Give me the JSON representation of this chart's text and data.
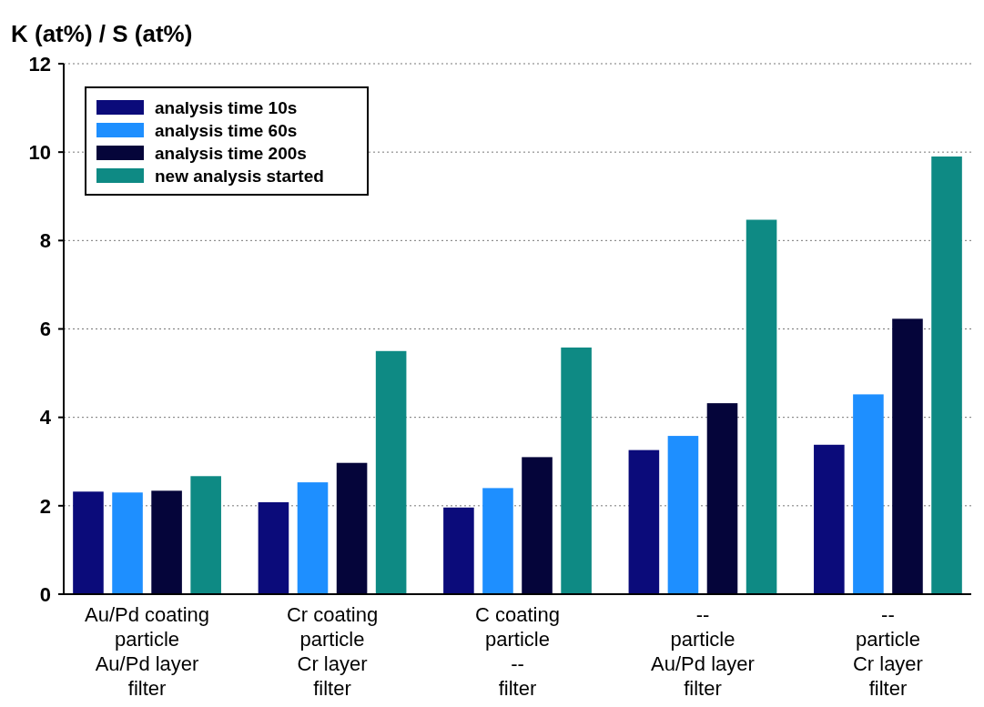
{
  "chart_data": {
    "type": "bar",
    "ylabel": "K (at%) / S (at%)",
    "categories": [
      "Au/Pd coating\nparticle\nAu/Pd layer\nfilter",
      "Cr coating\nparticle\nCr layer\nfilter",
      "C coating\nparticle\n--\nfilter",
      "--\nparticle\nAu/Pd layer\nfilter",
      "--\nparticle\nCr layer\nfilter"
    ],
    "series": [
      {
        "name": "analysis time 10s",
        "color": "#0b0b7a",
        "values": [
          2.32,
          2.08,
          1.96,
          3.26,
          3.38
        ]
      },
      {
        "name": "analysis time 60s",
        "color": "#1e8fff",
        "values": [
          2.3,
          2.53,
          2.4,
          3.58,
          4.52
        ]
      },
      {
        "name": "analysis time 200s",
        "color": "#05053a",
        "values": [
          2.34,
          2.97,
          3.1,
          4.32,
          6.23
        ]
      },
      {
        "name": "new analysis started",
        "color": "#0e8a84",
        "values": [
          2.67,
          5.5,
          5.58,
          8.47,
          9.9
        ]
      }
    ],
    "ylim": [
      0,
      12
    ],
    "yticks": [
      0,
      2,
      4,
      6,
      8,
      10,
      12
    ],
    "grid": "y",
    "legend": "top left"
  }
}
